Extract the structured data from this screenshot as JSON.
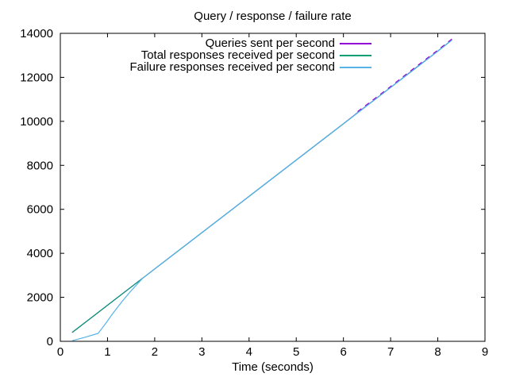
{
  "chart_data": {
    "type": "line",
    "title": "Query / response / failure rate",
    "xlabel": "Time (seconds)",
    "ylabel": "",
    "xlim": [
      0,
      9
    ],
    "ylim": [
      0,
      14000
    ],
    "x_ticks": [
      0,
      1,
      2,
      3,
      4,
      5,
      6,
      7,
      8,
      9
    ],
    "y_ticks": [
      0,
      2000,
      4000,
      6000,
      8000,
      10000,
      12000,
      14000
    ],
    "grid": false,
    "legend_position": "top-center-inside",
    "background_color": "#ffffff",
    "axis_color": "#000000",
    "text_color": "#000000",
    "series": [
      {
        "name": "Queries sent per second",
        "color": "#9400d3",
        "points": [
          [
            0.25,
            400
          ],
          [
            2,
            3290
          ],
          [
            4,
            6590
          ],
          [
            6,
            9890
          ],
          [
            6.3,
            10395
          ],
          [
            7,
            11540
          ],
          [
            7.5,
            12378
          ],
          [
            8,
            13190
          ],
          [
            8.3,
            13700
          ]
        ]
      },
      {
        "name": "Total responses received per second",
        "color": "#009e73",
        "points": [
          [
            0.25,
            400
          ],
          [
            1,
            1640
          ],
          [
            2,
            3290
          ],
          [
            3,
            4940
          ],
          [
            4,
            6590
          ],
          [
            5,
            8240
          ],
          [
            6,
            9890
          ],
          [
            7,
            11540
          ],
          [
            8,
            13190
          ],
          [
            8.3,
            13700
          ]
        ]
      },
      {
        "name": "Failure responses received per second",
        "color": "#56b4e9",
        "points": [
          [
            0.25,
            30
          ],
          [
            0.5,
            170
          ],
          [
            0.8,
            360
          ],
          [
            0.95,
            780
          ],
          [
            1.1,
            1230
          ],
          [
            1.3,
            1790
          ],
          [
            1.5,
            2300
          ],
          [
            1.75,
            2880
          ],
          [
            2,
            3290
          ],
          [
            2.5,
            4120
          ],
          [
            3,
            4940
          ],
          [
            4,
            6590
          ],
          [
            5,
            8240
          ],
          [
            6,
            9890
          ],
          [
            7,
            11540
          ],
          [
            8,
            13190
          ],
          [
            8.3,
            13700
          ]
        ]
      }
    ]
  }
}
